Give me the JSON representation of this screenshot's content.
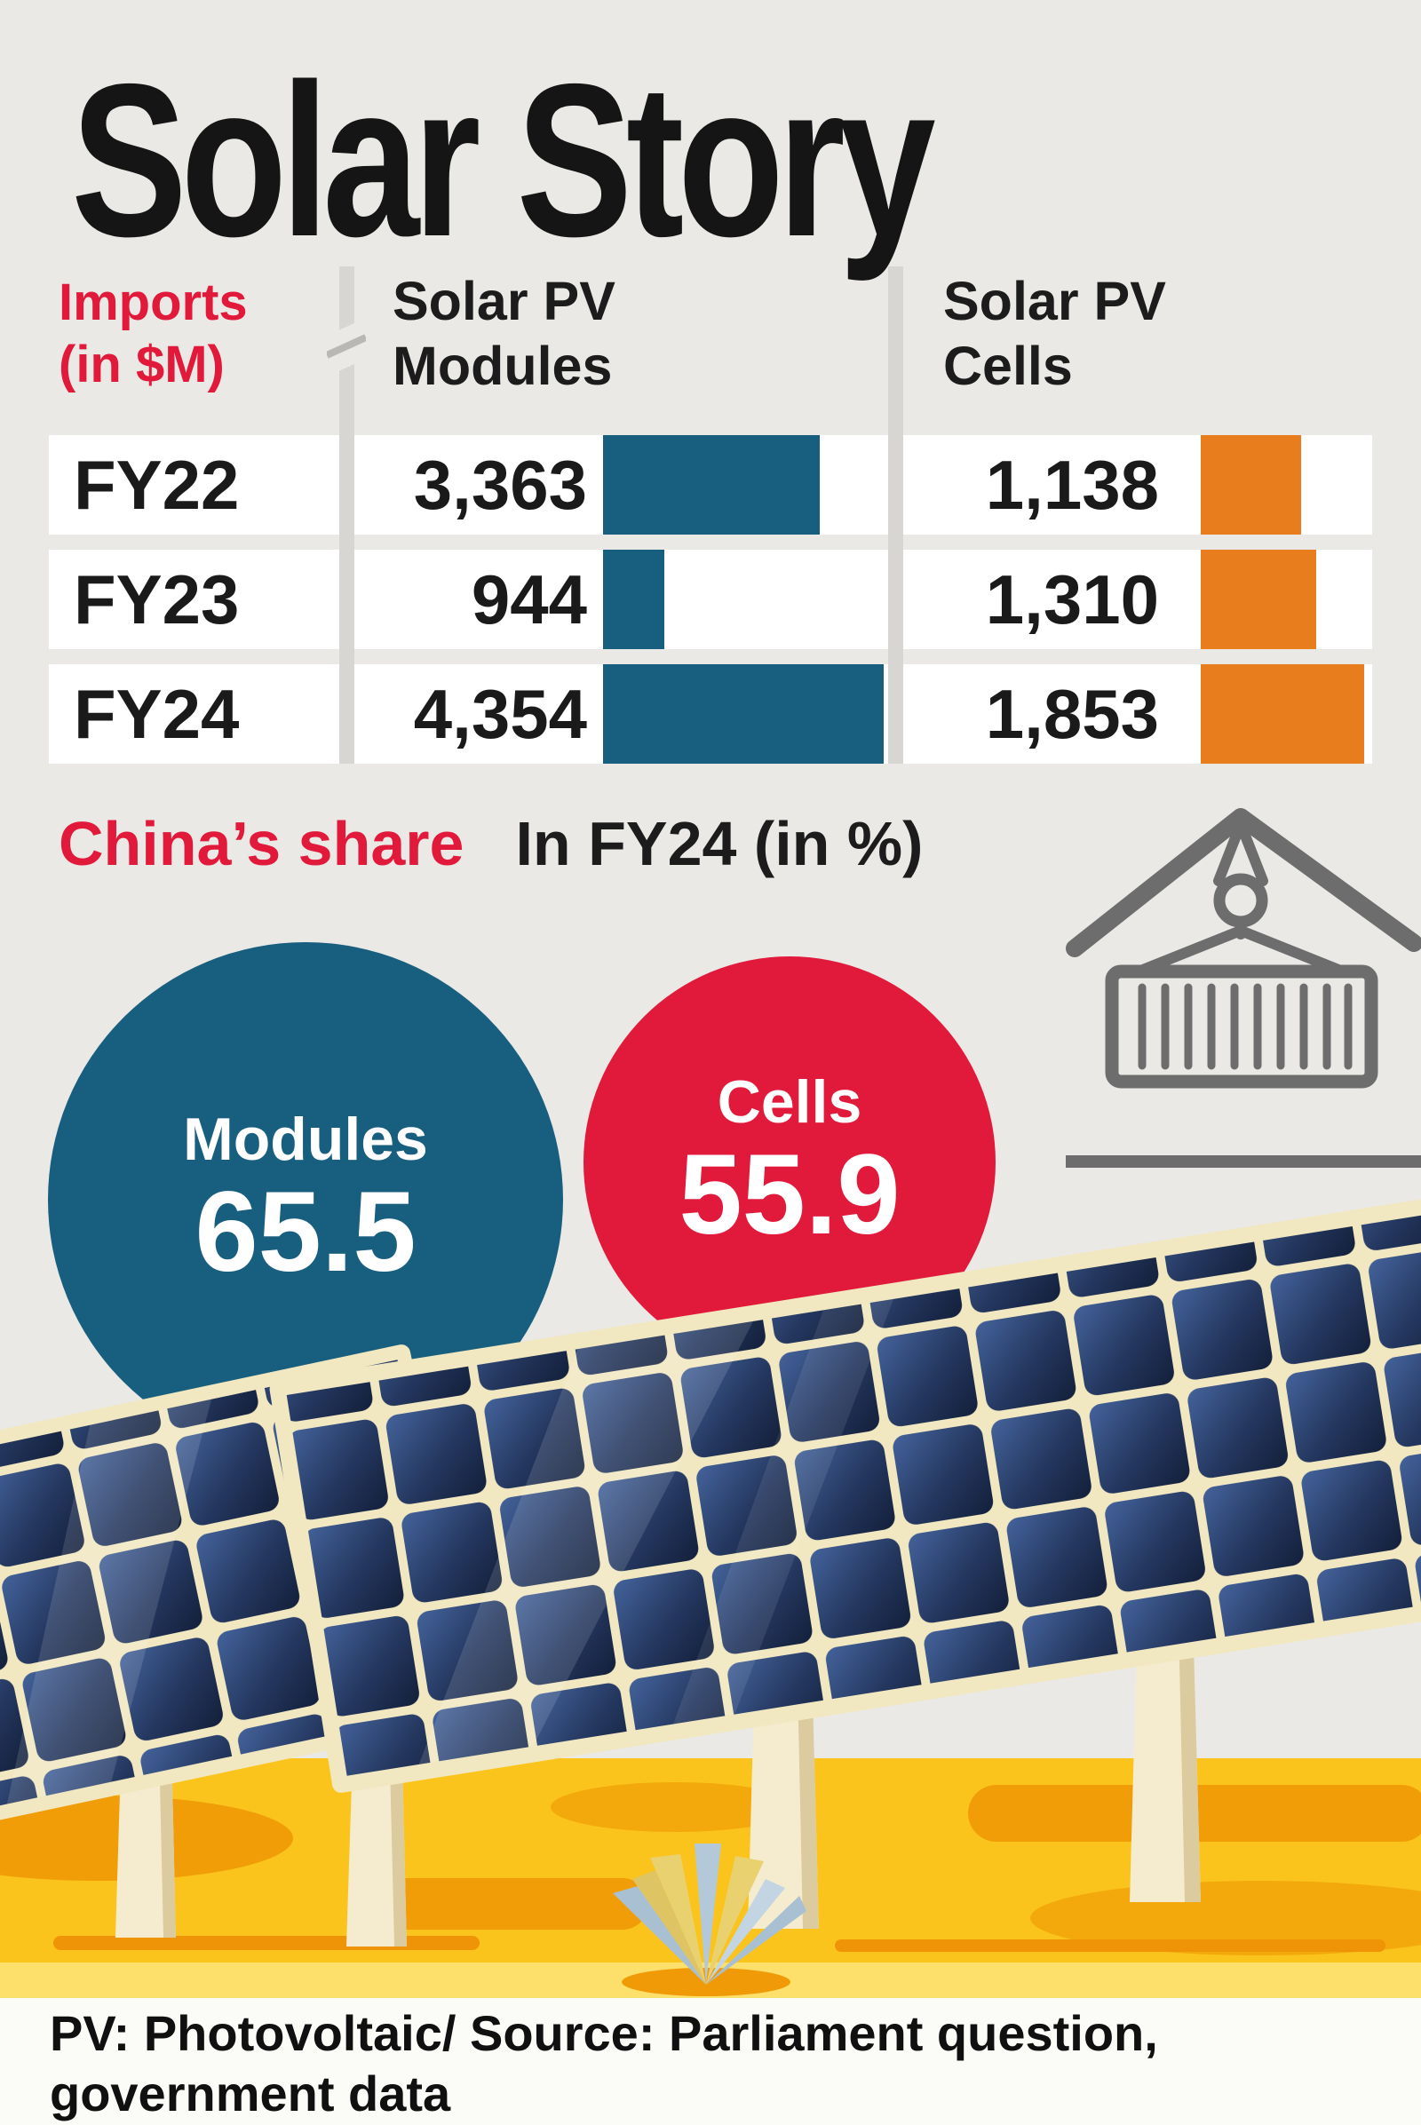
{
  "title": "Solar Story",
  "imports": {
    "label_line1": "Imports",
    "label_line2": "(in $M)",
    "modules_header_line1": "Solar PV",
    "modules_header_line2": "Modules",
    "cells_header_line1": "Solar PV",
    "cells_header_line2": "Cells",
    "rows": [
      {
        "year": "FY22",
        "modules": "3,363",
        "cells": "1,138"
      },
      {
        "year": "FY23",
        "modules": "944",
        "cells": "1,310"
      },
      {
        "year": "FY24",
        "modules": "4,354",
        "cells": "1,853"
      }
    ]
  },
  "china_share": {
    "heading": "China’s share",
    "subheading": "In FY24 (in %)",
    "modules": {
      "label": "Modules",
      "value": "65.5"
    },
    "cells": {
      "label": "Cells",
      "value": "55.9"
    }
  },
  "footer": {
    "line1": "PV: Photovoltaic/ Source: Parliament question,",
    "line2": "government data"
  },
  "icons": {
    "crane": "crane-with-shipping-container-icon",
    "plant": "agave-plant",
    "panels": "solar-panels-illustration"
  },
  "colors": {
    "bg": "#eae9e6",
    "blue": "#185e7f",
    "orange": "#e87d1e",
    "red": "#e11a3c",
    "yellow_ground": "#fbc41d",
    "orange_blob": "#f09d07",
    "panel_frame": "#f1e7c0",
    "panel_cell_dark": "#16233f"
  },
  "chart_data": [
    {
      "type": "bar",
      "orientation": "horizontal",
      "title": "Imports (in $M)",
      "categories": [
        "FY22",
        "FY23",
        "FY24"
      ],
      "series": [
        {
          "name": "Solar PV Modules",
          "values": [
            3363,
            944,
            4354
          ],
          "color": "#185e7f"
        },
        {
          "name": "Solar PV Cells",
          "values": [
            1138,
            1310,
            1853
          ],
          "color": "#e87d1e"
        }
      ],
      "data_labels": true,
      "legend_position": "column-headers",
      "grid": false
    },
    {
      "type": "bar",
      "title": "China’s share In FY24 (in %)",
      "categories": [
        "Modules",
        "Cells"
      ],
      "values": [
        65.5,
        55.9
      ],
      "colors": [
        "#185e7f",
        "#e11a3c"
      ],
      "style": "circle-badges"
    }
  ]
}
